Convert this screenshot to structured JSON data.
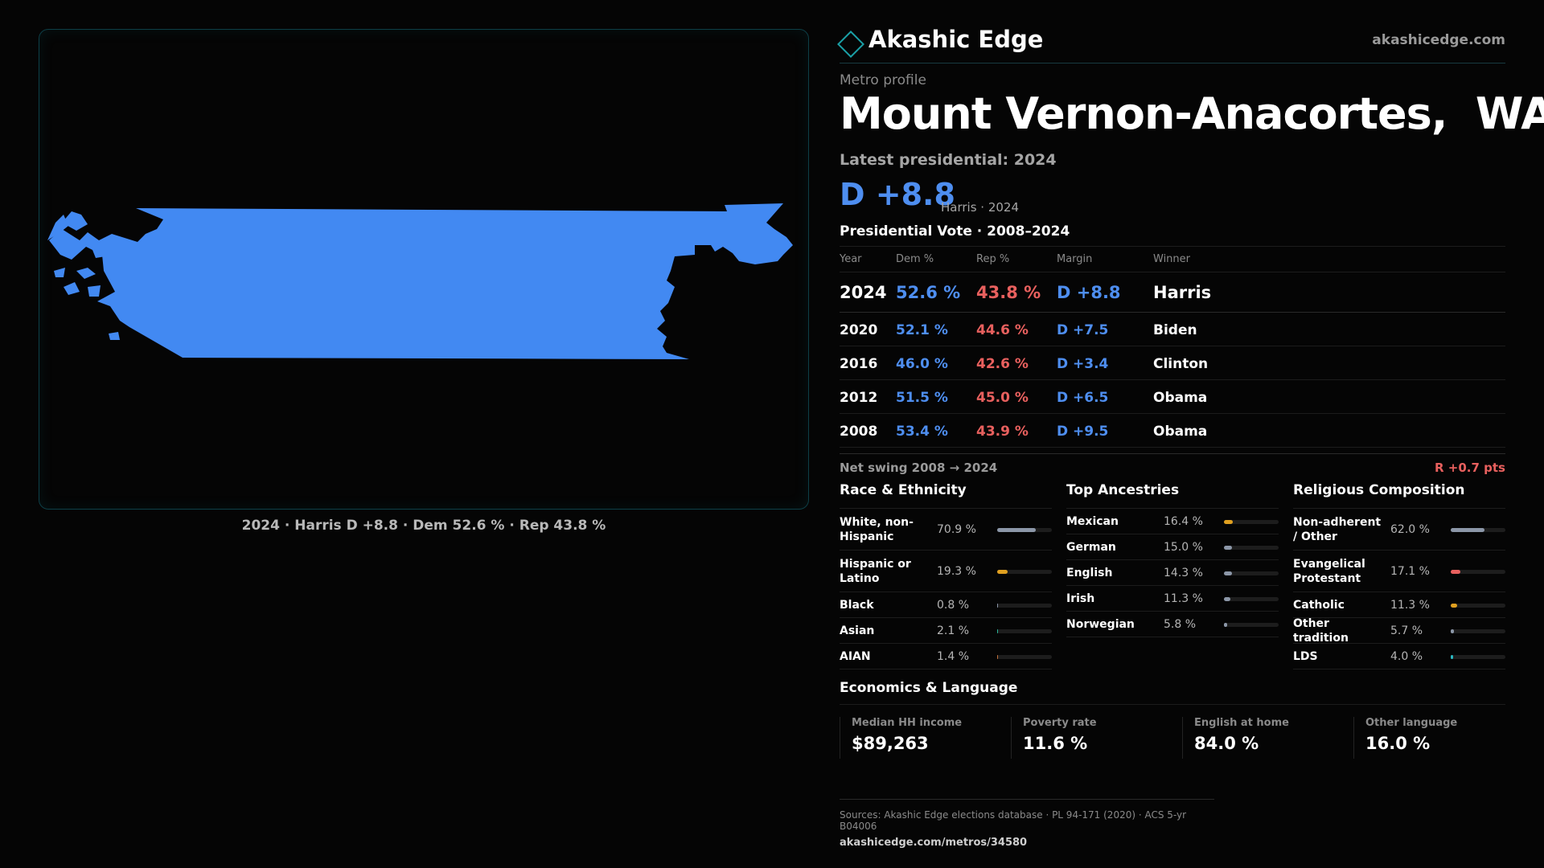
{
  "map": {
    "caption": "2024 · Harris D +8.8 · Dem 52.6 % · Rep 43.8 %",
    "fill_color": "#4289f2"
  },
  "brand": {
    "name": "Akashic Edge",
    "url": "akashicedge.com"
  },
  "header": {
    "eyebrow": "Metro profile",
    "title": "Mount Vernon-Anacortes,  WA",
    "latest": "Latest presidential: 2024",
    "margin": "D +8.8",
    "margin_sub": "Harris · 2024"
  },
  "vote_table": {
    "heading": "Presidential Vote · 2008–2024",
    "columns": [
      "Year",
      "Dem %",
      "Rep %",
      "Margin",
      "Winner"
    ],
    "rows": [
      {
        "year": "2024",
        "dem": "52.6 %",
        "rep": "43.8 %",
        "margin": "D +8.8",
        "winner": "Harris"
      },
      {
        "year": "2020",
        "dem": "52.1 %",
        "rep": "44.6 %",
        "margin": "D +7.5",
        "winner": "Biden"
      },
      {
        "year": "2016",
        "dem": "46.0 %",
        "rep": "42.6 %",
        "margin": "D +3.4",
        "winner": "Clinton"
      },
      {
        "year": "2012",
        "dem": "51.5 %",
        "rep": "45.0 %",
        "margin": "D +6.5",
        "winner": "Obama"
      },
      {
        "year": "2008",
        "dem": "53.4 %",
        "rep": "43.9 %",
        "margin": "D +9.5",
        "winner": "Obama"
      }
    ],
    "swing_label": "Net swing 2008 → 2024",
    "swing_value": "R +0.7 pts"
  },
  "race": {
    "heading": "Race & Ethnicity",
    "items": [
      {
        "label": "White, non-Hispanic",
        "pct": "70.9 %",
        "value": 0.709,
        "color": "#8c97a8"
      },
      {
        "label": "Hispanic or Latino",
        "pct": "19.3 %",
        "value": 0.193,
        "color": "#e0a020"
      },
      {
        "label": "Black",
        "pct": "0.8 %",
        "value": 0.008,
        "color": "#8c97a8"
      },
      {
        "label": "Asian",
        "pct": "2.1 %",
        "value": 0.021,
        "color": "#2ab79a"
      },
      {
        "label": "AIAN",
        "pct": "1.4 %",
        "value": 0.014,
        "color": "#c0703a"
      }
    ]
  },
  "ancestry": {
    "heading": "Top Ancestries",
    "items": [
      {
        "label": "Mexican",
        "pct": "16.4 %",
        "value": 0.164,
        "color": "#e0a020"
      },
      {
        "label": "German",
        "pct": "15.0 %",
        "value": 0.15,
        "color": "#8c97a8"
      },
      {
        "label": "English",
        "pct": "14.3 %",
        "value": 0.143,
        "color": "#8c97a8"
      },
      {
        "label": "Irish",
        "pct": "11.3 %",
        "value": 0.113,
        "color": "#8c97a8"
      },
      {
        "label": "Norwegian",
        "pct": "5.8 %",
        "value": 0.058,
        "color": "#8c97a8"
      }
    ]
  },
  "religion": {
    "heading": "Religious Composition",
    "items": [
      {
        "label": "Non-adherent / Other",
        "pct": "62.0 %",
        "value": 0.62,
        "color": "#8c97a8"
      },
      {
        "label": "Evangelical Protestant",
        "pct": "17.1 %",
        "value": 0.171,
        "color": "#e8605e"
      },
      {
        "label": "Catholic",
        "pct": "11.3 %",
        "value": 0.113,
        "color": "#e0a020"
      },
      {
        "label": "Other tradition",
        "pct": "5.7 %",
        "value": 0.057,
        "color": "#8c97a8"
      },
      {
        "label": "LDS",
        "pct": "4.0 %",
        "value": 0.04,
        "color": "#2ab7c0"
      }
    ]
  },
  "economics": {
    "heading": "Economics & Language",
    "items": [
      {
        "label": "Median HH income",
        "value": "$89,263"
      },
      {
        "label": "Poverty rate",
        "value": "11.6 %"
      },
      {
        "label": "English at home",
        "value": "84.0 %"
      },
      {
        "label": "Other language",
        "value": "16.0 %"
      }
    ]
  },
  "footer": {
    "sources": "Sources: Akashic Edge elections database · PL 94-171 (2020) · ACS 5-yr B04006",
    "url": "akashicedge.com/metros/34580"
  },
  "colors": {
    "dem": "#4e8ef0",
    "rep": "#e8605e",
    "accent": "#1aa0a6"
  }
}
